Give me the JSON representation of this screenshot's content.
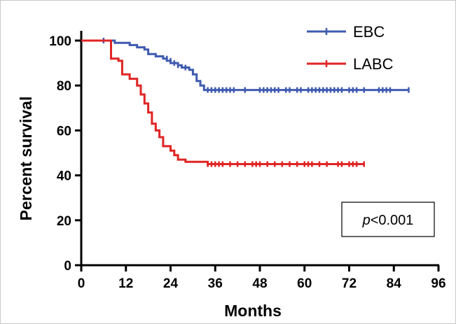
{
  "chart_data": {
    "type": "line",
    "subtype": "kaplan-meier",
    "xlabel": "Months",
    "ylabel": "Percent survival",
    "xlim": [
      0,
      96
    ],
    "ylim": [
      0,
      100
    ],
    "xticks": [
      0,
      12,
      24,
      36,
      48,
      60,
      72,
      84,
      96
    ],
    "yticks": [
      0,
      20,
      40,
      60,
      80,
      100
    ],
    "grid": false,
    "legend_position": "top-right",
    "annotation": {
      "italic": "p",
      "rest": "<0.001"
    },
    "series": [
      {
        "name": "EBC",
        "color": "#3f5bb0",
        "steps": [
          [
            0,
            100
          ],
          [
            8,
            100
          ],
          [
            9,
            99
          ],
          [
            12,
            99
          ],
          [
            13,
            98
          ],
          [
            15,
            97
          ],
          [
            17,
            96
          ],
          [
            18,
            94
          ],
          [
            20,
            93
          ],
          [
            22,
            92
          ],
          [
            23,
            91
          ],
          [
            24,
            90
          ],
          [
            26,
            89
          ],
          [
            27,
            88
          ],
          [
            29,
            87
          ],
          [
            30,
            85
          ],
          [
            31,
            82
          ],
          [
            32,
            80
          ],
          [
            33,
            78
          ],
          [
            88,
            78
          ]
        ],
        "censored": [
          [
            6,
            100
          ],
          [
            23,
            92
          ],
          [
            24,
            91
          ],
          [
            25,
            90
          ],
          [
            26,
            89
          ],
          [
            28,
            88
          ],
          [
            34,
            78
          ],
          [
            35,
            78
          ],
          [
            36,
            78
          ],
          [
            37,
            78
          ],
          [
            38,
            78
          ],
          [
            39,
            78
          ],
          [
            40,
            78
          ],
          [
            41,
            78
          ],
          [
            44,
            78
          ],
          [
            48,
            78
          ],
          [
            49,
            78
          ],
          [
            50,
            78
          ],
          [
            51,
            78
          ],
          [
            52,
            78
          ],
          [
            53,
            78
          ],
          [
            55,
            78
          ],
          [
            56,
            78
          ],
          [
            58,
            78
          ],
          [
            59,
            78
          ],
          [
            61,
            78
          ],
          [
            62,
            78
          ],
          [
            63,
            78
          ],
          [
            64,
            78
          ],
          [
            65,
            78
          ],
          [
            66,
            78
          ],
          [
            67,
            78
          ],
          [
            68,
            78
          ],
          [
            69,
            78
          ],
          [
            70,
            78
          ],
          [
            72,
            78
          ],
          [
            73,
            78
          ],
          [
            74,
            78
          ],
          [
            76,
            78
          ],
          [
            80,
            78
          ],
          [
            81,
            78
          ],
          [
            82,
            78
          ],
          [
            83,
            78
          ],
          [
            88,
            78
          ]
        ]
      },
      {
        "name": "LABC",
        "color": "#e02424",
        "steps": [
          [
            0,
            100
          ],
          [
            7,
            100
          ],
          [
            8,
            92
          ],
          [
            10,
            91
          ],
          [
            11,
            85
          ],
          [
            13,
            83
          ],
          [
            15,
            80
          ],
          [
            16,
            76
          ],
          [
            17,
            72
          ],
          [
            18,
            68
          ],
          [
            19,
            63
          ],
          [
            20,
            60
          ],
          [
            21,
            57
          ],
          [
            22,
            53
          ],
          [
            24,
            51
          ],
          [
            25,
            49
          ],
          [
            26,
            47
          ],
          [
            28,
            46
          ],
          [
            34,
            45
          ],
          [
            76,
            45
          ]
        ],
        "censored": [
          [
            34,
            45
          ],
          [
            35,
            45
          ],
          [
            36,
            45
          ],
          [
            37,
            45
          ],
          [
            38,
            45
          ],
          [
            40,
            45
          ],
          [
            42,
            45
          ],
          [
            44,
            45
          ],
          [
            46,
            45
          ],
          [
            47,
            45
          ],
          [
            48,
            45
          ],
          [
            50,
            45
          ],
          [
            52,
            45
          ],
          [
            54,
            45
          ],
          [
            56,
            45
          ],
          [
            58,
            45
          ],
          [
            60,
            45
          ],
          [
            61,
            45
          ],
          [
            62,
            45
          ],
          [
            64,
            45
          ],
          [
            66,
            45
          ],
          [
            69,
            45
          ],
          [
            70,
            45
          ],
          [
            72,
            45
          ],
          [
            73,
            45
          ],
          [
            74,
            45
          ],
          [
            76,
            45
          ]
        ]
      }
    ]
  }
}
